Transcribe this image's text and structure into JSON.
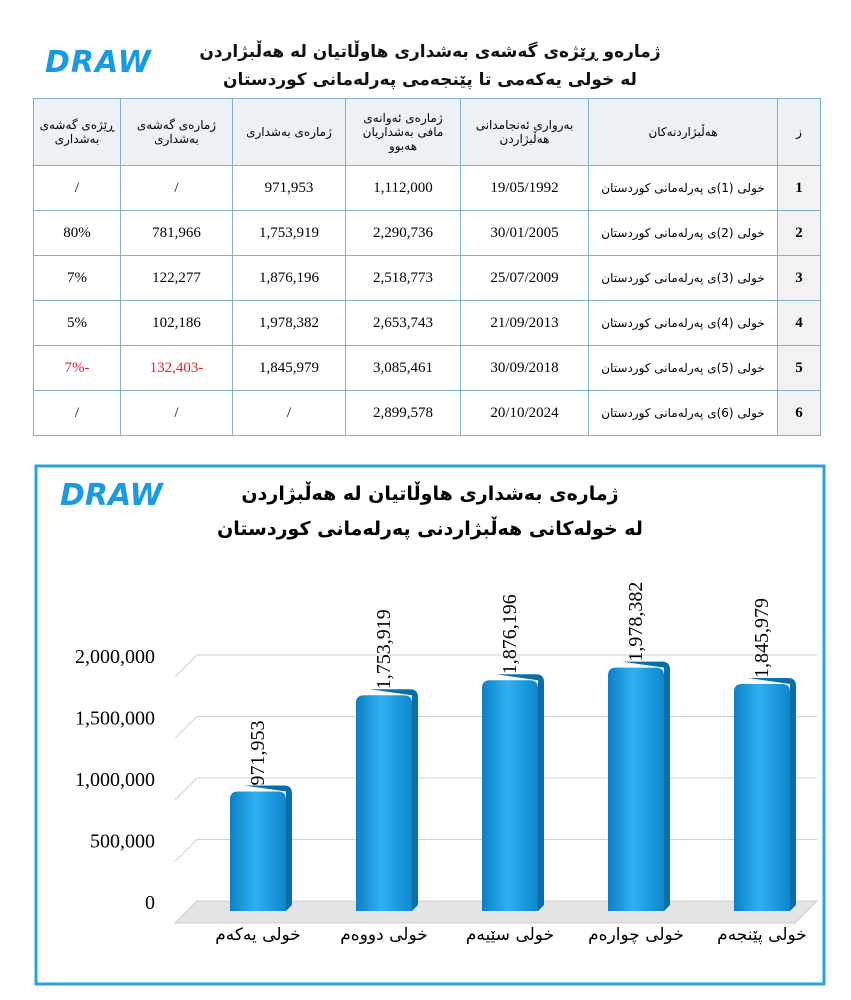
{
  "header": {
    "logo": "DRAW",
    "title_lines": [
      "ژمارەو ڕێژەی گەشەی بەشداری هاوڵاتیان لە هەڵبژاردن",
      "لە خولی یەکەمی تا پێنجەمی پەرلەمانی کوردستان"
    ]
  },
  "table": {
    "columns": [
      "ز",
      "هەڵبژاردنەکان",
      "بەرواری ئەنجامدانی هەڵبژاردن",
      "ژمارەی ئەوانەی مافی بەشداریان هەبوو",
      "ژمارەی بەشداری",
      "ژمارەی گەشەی بەشداری",
      "ڕێژەی گەشەی بەشداری"
    ],
    "rows": [
      [
        "1",
        "خولی (1)ی پەرلەمانی کوردستان",
        "19/05/1992",
        "1,112,000",
        "971,953",
        "/",
        "/"
      ],
      [
        "2",
        "خولی (2)ی پەرلەمانی کوردستان",
        "30/01/2005",
        "2,290,736",
        "1,753,919",
        "781,966",
        "80%"
      ],
      [
        "3",
        "خولی (3)ی پەرلەمانی کوردستان",
        "25/07/2009",
        "2,518,773",
        "1,876,196",
        "122,277",
        "7%"
      ],
      [
        "4",
        "خولی (4)ی پەرلەمانی کوردستان",
        "21/09/2013",
        "2,653,743",
        "1,978,382",
        "102,186",
        "5%"
      ],
      [
        "5",
        "خولی (5)ی پەرلەمانی کوردستان",
        "30/09/2018",
        "3,085,461",
        "1,845,979",
        "-132,403",
        "-7%"
      ],
      [
        "6",
        "خولی (6)ی پەرلەمانی کوردستان",
        "20/10/2024",
        "2,899,578",
        "/",
        "/",
        "/"
      ]
    ],
    "negative_color": "#e0242c"
  },
  "chart_data": {
    "type": "bar",
    "logo": "DRAW",
    "title_lines": [
      "ژمارەی بەشداری هاوڵاتیان لە هەڵبژاردن",
      "لە خولەکانی هەڵبژاردنی پەرلەمانی کوردستان"
    ],
    "categories": [
      "خولی یەکەم",
      "خولی دووەم",
      "خولی سێیەم",
      "خولی چوارەم",
      "خولی پێنجەم"
    ],
    "values": [
      971953,
      1753919,
      1876196,
      1978382,
      1845979
    ],
    "value_labels": [
      "971,953",
      "1,753,919",
      "1,876,196",
      "1,978,382",
      "1,845,979"
    ],
    "color": "#1a9ae0",
    "ylim": [
      0,
      2000000
    ],
    "yticks": [
      0,
      {
        "value": 500000,
        "label": "500,000"
      },
      {
        "value": 1000000,
        "label": "1,000,000"
      },
      {
        "value": 1500000,
        "label": "1,500,000"
      },
      {
        "value": 2000000,
        "label": "2,000,000"
      }
    ],
    "grid": true
  }
}
